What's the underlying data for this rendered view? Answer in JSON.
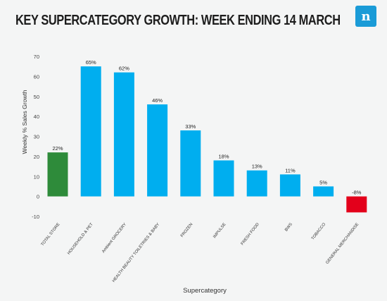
{
  "header": {
    "logo_glyph": "n",
    "logo_color": "#1a9bd7"
  },
  "chart_data": {
    "type": "bar",
    "title": "KEY SUPERCATEGORY GROWTH: WEEK ENDING 14 MARCH",
    "xlabel": "Supercategory",
    "ylabel": "Weekly % Sales Growth",
    "ylim": [
      -10,
      70
    ],
    "yticks": [
      -10,
      0,
      10,
      20,
      30,
      40,
      50,
      60,
      70
    ],
    "grid": false,
    "categories": [
      "TOTAL STORE",
      "HOUSEHOLD & PET",
      "Ambient GROCERY",
      "HEALTH BEAUTY TOILETRIES & BABY",
      "FROZEN",
      "IMPULSE",
      "FRESH FOOD",
      "BWS",
      "TOBACCO",
      "GENERAL MERCHANDISE"
    ],
    "values": [
      22,
      65,
      62,
      46,
      33,
      18,
      13,
      11,
      5,
      -8
    ],
    "data_labels": [
      "22%",
      "65%",
      "62%",
      "46%",
      "33%",
      "18%",
      "13%",
      "11%",
      "5%",
      "-8%"
    ],
    "colors": [
      "#2e8b3a",
      "#00aeef",
      "#00aeef",
      "#00aeef",
      "#00aeef",
      "#00aeef",
      "#00aeef",
      "#00aeef",
      "#00aeef",
      "#e3001b"
    ]
  }
}
